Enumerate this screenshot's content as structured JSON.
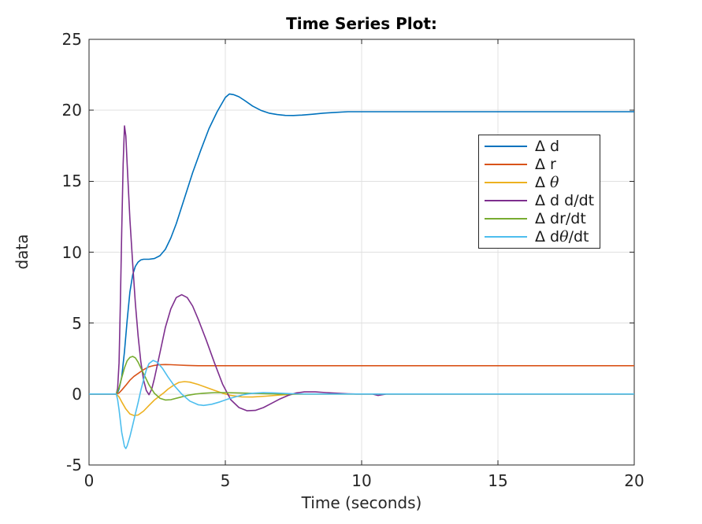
{
  "figure": {
    "background": "#ffffff"
  },
  "chart_data": {
    "type": "line",
    "title": "Time Series Plot:",
    "xlabel": "Time (seconds)",
    "ylabel": "data",
    "xlim": [
      0,
      20
    ],
    "ylim": [
      -5,
      25
    ],
    "xticks": [
      0,
      5,
      10,
      15,
      20
    ],
    "yticks": [
      -5,
      0,
      5,
      10,
      15,
      20,
      25
    ],
    "grid": true,
    "grid_color": "#e0e0e0",
    "axis_color": "#262626",
    "legend": {
      "position": "upper-right-inside",
      "border_color": "#262626",
      "background": "#ffffff"
    },
    "series": [
      {
        "name": "Δ d",
        "color": "#0072BD",
        "points": [
          [
            0,
            0
          ],
          [
            1,
            0
          ],
          [
            1.05,
            0.1
          ],
          [
            1.1,
            0.35
          ],
          [
            1.2,
            1.2
          ],
          [
            1.3,
            3.0
          ],
          [
            1.4,
            5.2
          ],
          [
            1.5,
            7.2
          ],
          [
            1.6,
            8.4
          ],
          [
            1.7,
            9.0
          ],
          [
            1.8,
            9.3
          ],
          [
            1.9,
            9.45
          ],
          [
            2.0,
            9.5
          ],
          [
            2.2,
            9.5
          ],
          [
            2.4,
            9.55
          ],
          [
            2.6,
            9.75
          ],
          [
            2.8,
            10.2
          ],
          [
            3.0,
            11.0
          ],
          [
            3.2,
            12.0
          ],
          [
            3.5,
            13.8
          ],
          [
            3.8,
            15.6
          ],
          [
            4.1,
            17.2
          ],
          [
            4.4,
            18.7
          ],
          [
            4.7,
            19.9
          ],
          [
            5.0,
            20.9
          ],
          [
            5.15,
            21.15
          ],
          [
            5.3,
            21.1
          ],
          [
            5.5,
            20.95
          ],
          [
            5.7,
            20.7
          ],
          [
            6.0,
            20.3
          ],
          [
            6.3,
            20.0
          ],
          [
            6.6,
            19.8
          ],
          [
            6.9,
            19.7
          ],
          [
            7.2,
            19.64
          ],
          [
            7.5,
            19.63
          ],
          [
            7.8,
            19.66
          ],
          [
            8.2,
            19.72
          ],
          [
            8.6,
            19.8
          ],
          [
            9.0,
            19.85
          ],
          [
            9.5,
            19.9
          ],
          [
            10,
            19.9
          ],
          [
            12,
            19.9
          ],
          [
            15,
            19.9
          ],
          [
            20,
            19.9
          ]
        ]
      },
      {
        "name": "Δ r",
        "color": "#D95319",
        "points": [
          [
            0,
            0
          ],
          [
            1,
            0
          ],
          [
            1.1,
            0.08
          ],
          [
            1.2,
            0.28
          ],
          [
            1.35,
            0.62
          ],
          [
            1.5,
            0.98
          ],
          [
            1.65,
            1.25
          ],
          [
            1.8,
            1.45
          ],
          [
            2.0,
            1.72
          ],
          [
            2.2,
            1.92
          ],
          [
            2.4,
            2.02
          ],
          [
            2.6,
            2.07
          ],
          [
            2.8,
            2.08
          ],
          [
            3.0,
            2.07
          ],
          [
            3.3,
            2.04
          ],
          [
            3.6,
            2.02
          ],
          [
            4.0,
            2.0
          ],
          [
            5,
            2.0
          ],
          [
            8,
            2.0
          ],
          [
            12,
            2.0
          ],
          [
            20,
            2.0
          ]
        ]
      },
      {
        "name": "Δ θ",
        "color": "#EDB120",
        "points": [
          [
            0,
            0
          ],
          [
            1,
            0
          ],
          [
            1.1,
            -0.2
          ],
          [
            1.2,
            -0.55
          ],
          [
            1.35,
            -1.05
          ],
          [
            1.5,
            -1.4
          ],
          [
            1.65,
            -1.51
          ],
          [
            1.8,
            -1.48
          ],
          [
            2.0,
            -1.2
          ],
          [
            2.2,
            -0.8
          ],
          [
            2.4,
            -0.42
          ],
          [
            2.6,
            -0.12
          ],
          [
            2.75,
            0.1
          ],
          [
            2.9,
            0.35
          ],
          [
            3.1,
            0.62
          ],
          [
            3.3,
            0.82
          ],
          [
            3.5,
            0.88
          ],
          [
            3.7,
            0.84
          ],
          [
            4.0,
            0.68
          ],
          [
            4.3,
            0.47
          ],
          [
            4.6,
            0.26
          ],
          [
            4.9,
            0.06
          ],
          [
            5.2,
            -0.1
          ],
          [
            5.6,
            -0.2
          ],
          [
            6.0,
            -0.21
          ],
          [
            6.5,
            -0.15
          ],
          [
            7.0,
            -0.07
          ],
          [
            7.5,
            -0.02
          ],
          [
            8,
            0
          ],
          [
            12,
            0
          ],
          [
            20,
            0
          ]
        ]
      },
      {
        "name": "Δ d d/dt",
        "color": "#7E2F8E",
        "points": [
          [
            0,
            0
          ],
          [
            1,
            0
          ],
          [
            1.05,
            0.4
          ],
          [
            1.1,
            2.2
          ],
          [
            1.15,
            6.5
          ],
          [
            1.2,
            11.5
          ],
          [
            1.25,
            16.2
          ],
          [
            1.3,
            18.9
          ],
          [
            1.35,
            18.2
          ],
          [
            1.4,
            16.2
          ],
          [
            1.5,
            12.3
          ],
          [
            1.6,
            9.2
          ],
          [
            1.7,
            6.4
          ],
          [
            1.8,
            4.1
          ],
          [
            1.9,
            2.3
          ],
          [
            2.0,
            1.0
          ],
          [
            2.1,
            0.25
          ],
          [
            2.2,
            -0.05
          ],
          [
            2.3,
            0.35
          ],
          [
            2.4,
            1.1
          ],
          [
            2.6,
            2.9
          ],
          [
            2.8,
            4.7
          ],
          [
            3.0,
            6.0
          ],
          [
            3.2,
            6.8
          ],
          [
            3.4,
            7.0
          ],
          [
            3.6,
            6.8
          ],
          [
            3.8,
            6.2
          ],
          [
            4.0,
            5.3
          ],
          [
            4.3,
            3.8
          ],
          [
            4.6,
            2.2
          ],
          [
            4.9,
            0.7
          ],
          [
            5.2,
            -0.4
          ],
          [
            5.5,
            -0.95
          ],
          [
            5.8,
            -1.18
          ],
          [
            6.1,
            -1.15
          ],
          [
            6.4,
            -0.95
          ],
          [
            6.7,
            -0.65
          ],
          [
            7.0,
            -0.35
          ],
          [
            7.3,
            -0.1
          ],
          [
            7.6,
            0.08
          ],
          [
            7.9,
            0.15
          ],
          [
            8.3,
            0.15
          ],
          [
            8.7,
            0.1
          ],
          [
            9.1,
            0.06
          ],
          [
            9.5,
            0.02
          ],
          [
            9.8,
            0
          ],
          [
            10.4,
            0
          ],
          [
            10.6,
            -0.1
          ],
          [
            10.9,
            0
          ],
          [
            20,
            0
          ]
        ]
      },
      {
        "name": "Δ dr/dt",
        "color": "#77AC30",
        "points": [
          [
            0,
            0
          ],
          [
            1,
            0
          ],
          [
            1.1,
            0.45
          ],
          [
            1.2,
            1.15
          ],
          [
            1.3,
            1.85
          ],
          [
            1.4,
            2.35
          ],
          [
            1.5,
            2.58
          ],
          [
            1.6,
            2.65
          ],
          [
            1.7,
            2.55
          ],
          [
            1.8,
            2.25
          ],
          [
            1.9,
            1.85
          ],
          [
            2.0,
            1.45
          ],
          [
            2.2,
            0.65
          ],
          [
            2.4,
            0.05
          ],
          [
            2.6,
            -0.3
          ],
          [
            2.8,
            -0.42
          ],
          [
            3.0,
            -0.4
          ],
          [
            3.3,
            -0.25
          ],
          [
            3.6,
            -0.1
          ],
          [
            3.9,
            0.0
          ],
          [
            4.2,
            0.06
          ],
          [
            4.6,
            0.1
          ],
          [
            5.0,
            0.1
          ],
          [
            5.5,
            0.08
          ],
          [
            6.0,
            0.05
          ],
          [
            6.5,
            0.02
          ],
          [
            7,
            0
          ],
          [
            12,
            0
          ],
          [
            20,
            0
          ]
        ]
      },
      {
        "name": "Δ dθ/dt",
        "color": "#4DBEEE",
        "points": [
          [
            0,
            0
          ],
          [
            1,
            0
          ],
          [
            1.05,
            -0.4
          ],
          [
            1.1,
            -1.1
          ],
          [
            1.2,
            -2.7
          ],
          [
            1.3,
            -3.7
          ],
          [
            1.35,
            -3.84
          ],
          [
            1.4,
            -3.65
          ],
          [
            1.5,
            -3.0
          ],
          [
            1.6,
            -2.2
          ],
          [
            1.7,
            -1.4
          ],
          [
            1.8,
            -0.6
          ],
          [
            1.9,
            0.25
          ],
          [
            2.0,
            1.0
          ],
          [
            2.1,
            1.7
          ],
          [
            2.2,
            2.15
          ],
          [
            2.35,
            2.37
          ],
          [
            2.5,
            2.25
          ],
          [
            2.7,
            1.8
          ],
          [
            2.9,
            1.2
          ],
          [
            3.1,
            0.65
          ],
          [
            3.4,
            0.0
          ],
          [
            3.7,
            -0.5
          ],
          [
            4.0,
            -0.75
          ],
          [
            4.2,
            -0.8
          ],
          [
            4.5,
            -0.72
          ],
          [
            4.8,
            -0.55
          ],
          [
            5.1,
            -0.35
          ],
          [
            5.4,
            -0.18
          ],
          [
            5.7,
            -0.03
          ],
          [
            6.0,
            0.06
          ],
          [
            6.4,
            0.1
          ],
          [
            6.8,
            0.08
          ],
          [
            7.2,
            0.04
          ],
          [
            7.6,
            0.01
          ],
          [
            8,
            0
          ],
          [
            12,
            0
          ],
          [
            20,
            0
          ]
        ]
      }
    ]
  }
}
